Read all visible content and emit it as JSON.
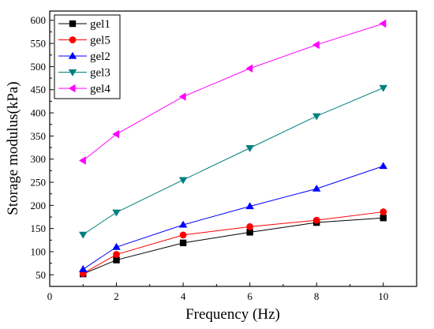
{
  "chart_data": {
    "type": "line",
    "xlabel": "Frequency (Hz)",
    "ylabel": "Storage modulus(kPa)",
    "xlim": [
      0,
      11
    ],
    "ylim": [
      25,
      620
    ],
    "xticks": [
      0,
      2,
      4,
      6,
      8,
      10
    ],
    "yticks": [
      50,
      100,
      150,
      200,
      250,
      300,
      350,
      400,
      450,
      500,
      550,
      600
    ],
    "grid": false,
    "legend_position": "top-left",
    "x": [
      1,
      2,
      4,
      6,
      8,
      10
    ],
    "series": [
      {
        "name": "gel1",
        "color": "#000000",
        "marker": "square",
        "values": [
          52,
          82,
          119,
          142,
          163,
          173
        ]
      },
      {
        "name": "gel5",
        "color": "#ff0000",
        "marker": "circle",
        "values": [
          53,
          94,
          136,
          154,
          168,
          186
        ]
      },
      {
        "name": "gel2",
        "color": "#0000ff",
        "marker": "triangle-up",
        "values": [
          62,
          110,
          158,
          198,
          236,
          285
        ]
      },
      {
        "name": "gel3",
        "color": "#008080",
        "marker": "triangle-down",
        "values": [
          137,
          185,
          255,
          324,
          393,
          454
        ]
      },
      {
        "name": "gel4",
        "color": "#ff00ff",
        "marker": "triangle-left",
        "values": [
          297,
          354,
          435,
          496,
          547,
          593
        ]
      }
    ]
  }
}
